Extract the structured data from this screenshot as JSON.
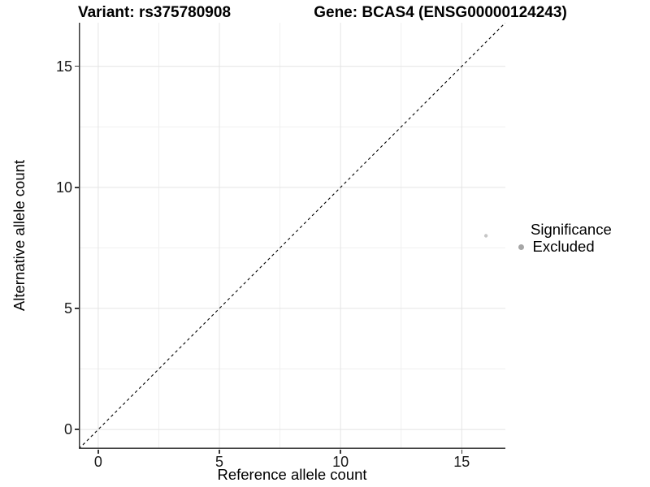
{
  "header": {
    "variant_title": "Variant: rs375780908",
    "gene_title": "Gene: BCAS4 (ENSG00000124243)"
  },
  "chart_data": {
    "type": "scatter",
    "title": "Variant: rs375780908 / Gene: BCAS4 (ENSG00000124243)",
    "xlabel": "Reference allele count",
    "ylabel": "Alternative allele count",
    "xlim": [
      -0.8,
      16.8
    ],
    "ylim": [
      -0.8,
      16.8
    ],
    "x_ticks": [
      0,
      5,
      10,
      15
    ],
    "y_ticks": [
      0,
      5,
      10,
      15
    ],
    "x_minor_ticks": [
      2.5,
      7.5,
      12.5
    ],
    "y_minor_ticks": [
      2.5,
      7.5,
      12.5
    ],
    "grid": "major and minor gridlines on white panel, left/bottom spines only",
    "reference_line": {
      "type": "identity y=x",
      "linestyle": "dashed",
      "color": "#000000"
    },
    "series": [
      {
        "name": "Excluded",
        "marker": "circle",
        "color": "#c6c6c6",
        "point_radius": 2.2,
        "points": [
          {
            "x": 16,
            "y": 8
          }
        ]
      }
    ],
    "legend": {
      "title": "Significance",
      "position": "right",
      "items": [
        {
          "label": "Excluded",
          "color": "#a6a6a6"
        }
      ]
    },
    "colors": {
      "grid_major": "#e4e4e4",
      "grid_minor": "#f0f0f0",
      "spine": "#383838",
      "tick_text": "#1a1a1a",
      "identity_line": "#000000"
    }
  }
}
